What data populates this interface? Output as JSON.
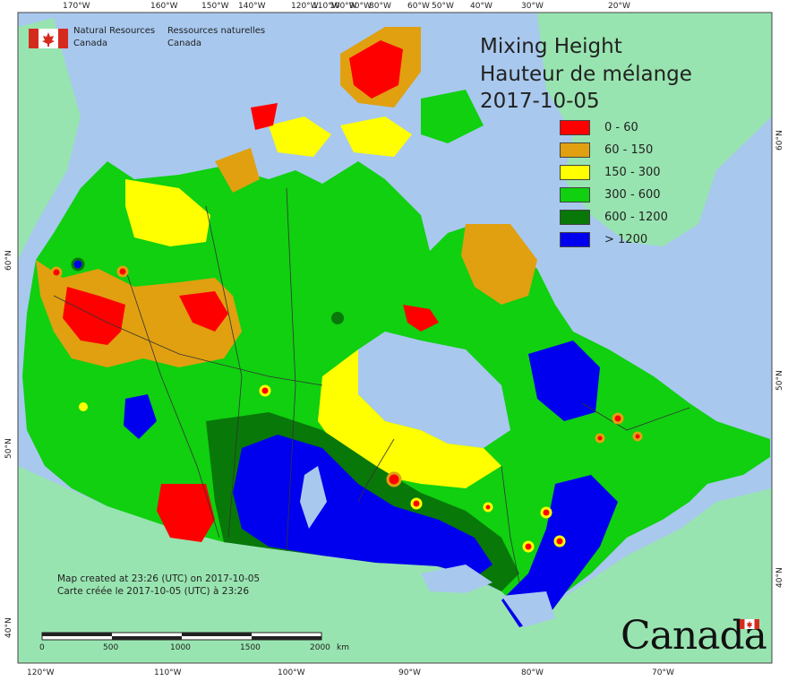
{
  "map": {
    "title_en": "Mixing Height",
    "title_fr": "Hauteur de mélange",
    "date": "2017-10-05",
    "agency_en_line1": "Natural Resources",
    "agency_en_line2": "Canada",
    "agency_fr_line1": "Ressources naturelles",
    "agency_fr_line2": "Canada",
    "created_en": "Map created at 23:26 (UTC) on 2017-10-05",
    "created_fr": "Carte créée le 2017-10-05 (UTC) à 23:26",
    "wordmark": "Canada",
    "scale": {
      "labels": [
        "0",
        "500",
        "1000",
        "1500",
        "2000"
      ],
      "unit": "km"
    },
    "legend": [
      {
        "label": "0 - 60",
        "color": "#ff0000"
      },
      {
        "label": "60 - 150",
        "color": "#e0a010"
      },
      {
        "label": "150 - 300",
        "color": "#ffff00"
      },
      {
        "label": "300 - 600",
        "color": "#10d010"
      },
      {
        "label": "600 - 1200",
        "color": "#087808"
      },
      {
        "label": "> 1200",
        "color": "#0000ee"
      }
    ],
    "top_ticks": [
      "170°W",
      "160°W",
      "150°W",
      "140°W",
      "120°W",
      "110°W",
      "100°W",
      "90°W",
      "80°W",
      "60°W",
      "50°W",
      "40°W",
      "30°W",
      "20°W"
    ],
    "bottom_ticks": [
      "120°W",
      "110°W",
      "100°W",
      "90°W",
      "80°W",
      "70°W"
    ],
    "left_ticks": [
      "60°N",
      "50°N",
      "40°N"
    ],
    "right_ticks": [
      "60°N",
      "50°N",
      "40°N"
    ],
    "colors": {
      "ocean": "#a8c8ee",
      "land_other": "#98e4b0",
      "border": "#333333"
    }
  }
}
